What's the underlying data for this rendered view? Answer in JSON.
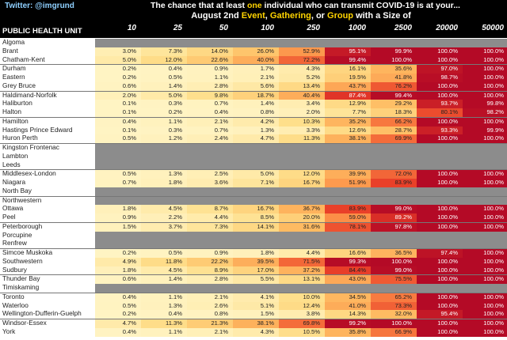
{
  "header": {
    "twitter": "Twitter: @imgrund",
    "title_parts": [
      "The chance that at least ",
      "one",
      " individual who can transmit COVID-19 is at your..."
    ],
    "subtitle_parts": [
      "August 2nd ",
      "Event",
      ", ",
      "Gathering",
      ", or ",
      "Group",
      " with a Size of"
    ],
    "unit_label": "PUBLIC HEALTH UNIT"
  },
  "chart_data": {
    "type": "table",
    "title": "The chance that at least one individual who can transmit COVID-19 is at your...",
    "subtitle": "August 2nd Event, Gathering, or Group with a Size of",
    "columns": [
      "10",
      "25",
      "50",
      "100",
      "250",
      "1000",
      "2500",
      "20000",
      "50000"
    ],
    "groups": [
      {
        "rows": [
          {
            "unit": "Algoma",
            "values": null
          },
          {
            "unit": "Brant",
            "values": [
              "3.0%",
              "7.3%",
              "14.0%",
              "26.0%",
              "52.9%",
              "95.1%",
              "99.9%",
              "100.0%",
              "100.0%"
            ]
          },
          {
            "unit": "Chatham-Kent",
            "values": [
              "5.0%",
              "12.0%",
              "22.6%",
              "40.0%",
              "72.2%",
              "99.4%",
              "100.0%",
              "100.0%",
              "100.0%"
            ]
          }
        ]
      },
      {
        "rows": [
          {
            "unit": "Durham",
            "values": [
              "0.2%",
              "0.4%",
              "0.9%",
              "1.7%",
              "4.3%",
              "16.1%",
              "35.6%",
              "97.0%",
              "100.0%"
            ]
          },
          {
            "unit": "Eastern",
            "values": [
              "0.2%",
              "0.5%",
              "1.1%",
              "2.1%",
              "5.2%",
              "19.5%",
              "41.8%",
              "98.7%",
              "100.0%"
            ]
          },
          {
            "unit": "Grey Bruce",
            "values": [
              "0.6%",
              "1.4%",
              "2.8%",
              "5.6%",
              "13.4%",
              "43.7%",
              "76.2%",
              "100.0%",
              "100.0%"
            ]
          }
        ]
      },
      {
        "rows": [
          {
            "unit": "Haldimand-Norfolk",
            "values": [
              "2.0%",
              "5.0%",
              "9.8%",
              "18.7%",
              "40.4%",
              "87.4%",
              "99.4%",
              "100.0%",
              "100.0%"
            ]
          },
          {
            "unit": "Haliburton",
            "values": [
              "0.1%",
              "0.3%",
              "0.7%",
              "1.4%",
              "3.4%",
              "12.9%",
              "29.2%",
              "93.7%",
              "99.8%"
            ]
          },
          {
            "unit": "Halton",
            "values": [
              "0.1%",
              "0.2%",
              "0.4%",
              "0.8%",
              "2.0%",
              "7.7%",
              "18.3%",
              "80.1%",
              "98.2%"
            ]
          }
        ]
      },
      {
        "rows": [
          {
            "unit": "Hamilton",
            "values": [
              "0.4%",
              "1.1%",
              "2.1%",
              "4.2%",
              "10.3%",
              "35.2%",
              "66.2%",
              "100.0%",
              "100.0%"
            ]
          },
          {
            "unit": "Hastings Prince Edward",
            "values": [
              "0.1%",
              "0.3%",
              "0.7%",
              "1.3%",
              "3.3%",
              "12.6%",
              "28.7%",
              "93.3%",
              "99.9%"
            ]
          },
          {
            "unit": "Huron Perth",
            "values": [
              "0.5%",
              "1.2%",
              "2.4%",
              "4.7%",
              "11.3%",
              "38.1%",
              "69.9%",
              "100.0%",
              "100.0%"
            ]
          }
        ]
      },
      {
        "rows": [
          {
            "unit": "Kingston Frontenac",
            "values": null
          },
          {
            "unit": "Lambton",
            "values": null
          },
          {
            "unit": "Leeds",
            "values": null
          }
        ]
      },
      {
        "rows": [
          {
            "unit": "Middlesex-London",
            "values": [
              "0.5%",
              "1.3%",
              "2.5%",
              "5.0%",
              "12.0%",
              "39.9%",
              "72.0%",
              "100.0%",
              "100.0%"
            ]
          },
          {
            "unit": "Niagara",
            "values": [
              "0.7%",
              "1.8%",
              "3.6%",
              "7.1%",
              "16.7%",
              "51.9%",
              "83.9%",
              "100.0%",
              "100.0%"
            ]
          },
          {
            "unit": "North Bay",
            "values": null
          }
        ]
      },
      {
        "rows": [
          {
            "unit": "Northwestern",
            "values": null
          },
          {
            "unit": "Ottawa",
            "values": [
              "1.8%",
              "4.5%",
              "8.7%",
              "16.7%",
              "36.7%",
              "83.9%",
              "99.0%",
              "100.0%",
              "100.0%"
            ]
          },
          {
            "unit": "Peel",
            "values": [
              "0.9%",
              "2.2%",
              "4.4%",
              "8.5%",
              "20.0%",
              "59.0%",
              "89.2%",
              "100.0%",
              "100.0%"
            ]
          }
        ]
      },
      {
        "rows": [
          {
            "unit": "Peterborough",
            "values": [
              "1.5%",
              "3.7%",
              "7.3%",
              "14.1%",
              "31.6%",
              "78.1%",
              "97.8%",
              "100.0%",
              "100.0%"
            ]
          },
          {
            "unit": "Porcupine",
            "values": null
          },
          {
            "unit": "Renfrew",
            "values": null
          }
        ]
      },
      {
        "rows": [
          {
            "unit": "Simcoe Muskoka",
            "values": [
              "0.2%",
              "0.5%",
              "0.9%",
              "1.8%",
              "4.4%",
              "16.6%",
              "36.5%",
              "97.4%",
              "100.0%"
            ]
          },
          {
            "unit": "Southwestern",
            "values": [
              "4.9%",
              "11.8%",
              "22.2%",
              "39.5%",
              "71.5%",
              "99.3%",
              "100.0%",
              "100.0%",
              "100.0%"
            ]
          },
          {
            "unit": "Sudbury",
            "values": [
              "1.8%",
              "4.5%",
              "8.9%",
              "17.0%",
              "37.2%",
              "84.4%",
              "99.0%",
              "100.0%",
              "100.0%"
            ]
          }
        ]
      },
      {
        "rows": [
          {
            "unit": "Thunder Bay",
            "values": [
              "0.6%",
              "1.4%",
              "2.8%",
              "5.5%",
              "13.1%",
              "43.0%",
              "75.5%",
              "100.0%",
              "100.0%"
            ]
          },
          {
            "unit": "Timiskaming",
            "values": null
          }
        ]
      },
      {
        "rows": [
          {
            "unit": "Toronto",
            "values": [
              "0.4%",
              "1.1%",
              "2.1%",
              "4.1%",
              "10.0%",
              "34.5%",
              "65.2%",
              "100.0%",
              "100.0%"
            ]
          },
          {
            "unit": "Waterloo",
            "values": [
              "0.5%",
              "1.3%",
              "2.6%",
              "5.1%",
              "12.4%",
              "41.0%",
              "73.3%",
              "100.0%",
              "100.0%"
            ]
          },
          {
            "unit": "Wellington-Dufferin-Guelph",
            "values": [
              "0.2%",
              "0.4%",
              "0.8%",
              "1.5%",
              "3.8%",
              "14.3%",
              "32.0%",
              "95.4%",
              "100.0%"
            ]
          }
        ]
      },
      {
        "rows": [
          {
            "unit": "Windsor-Essex",
            "values": [
              "4.7%",
              "11.3%",
              "21.3%",
              "38.1%",
              "69.8%",
              "99.2%",
              "100.0%",
              "100.0%",
              "100.0%"
            ]
          },
          {
            "unit": "York",
            "values": [
              "0.4%",
              "1.1%",
              "2.1%",
              "4.3%",
              "10.5%",
              "35.8%",
              "66.9%",
              "100.0%",
              "100.0%"
            ]
          }
        ]
      }
    ]
  }
}
